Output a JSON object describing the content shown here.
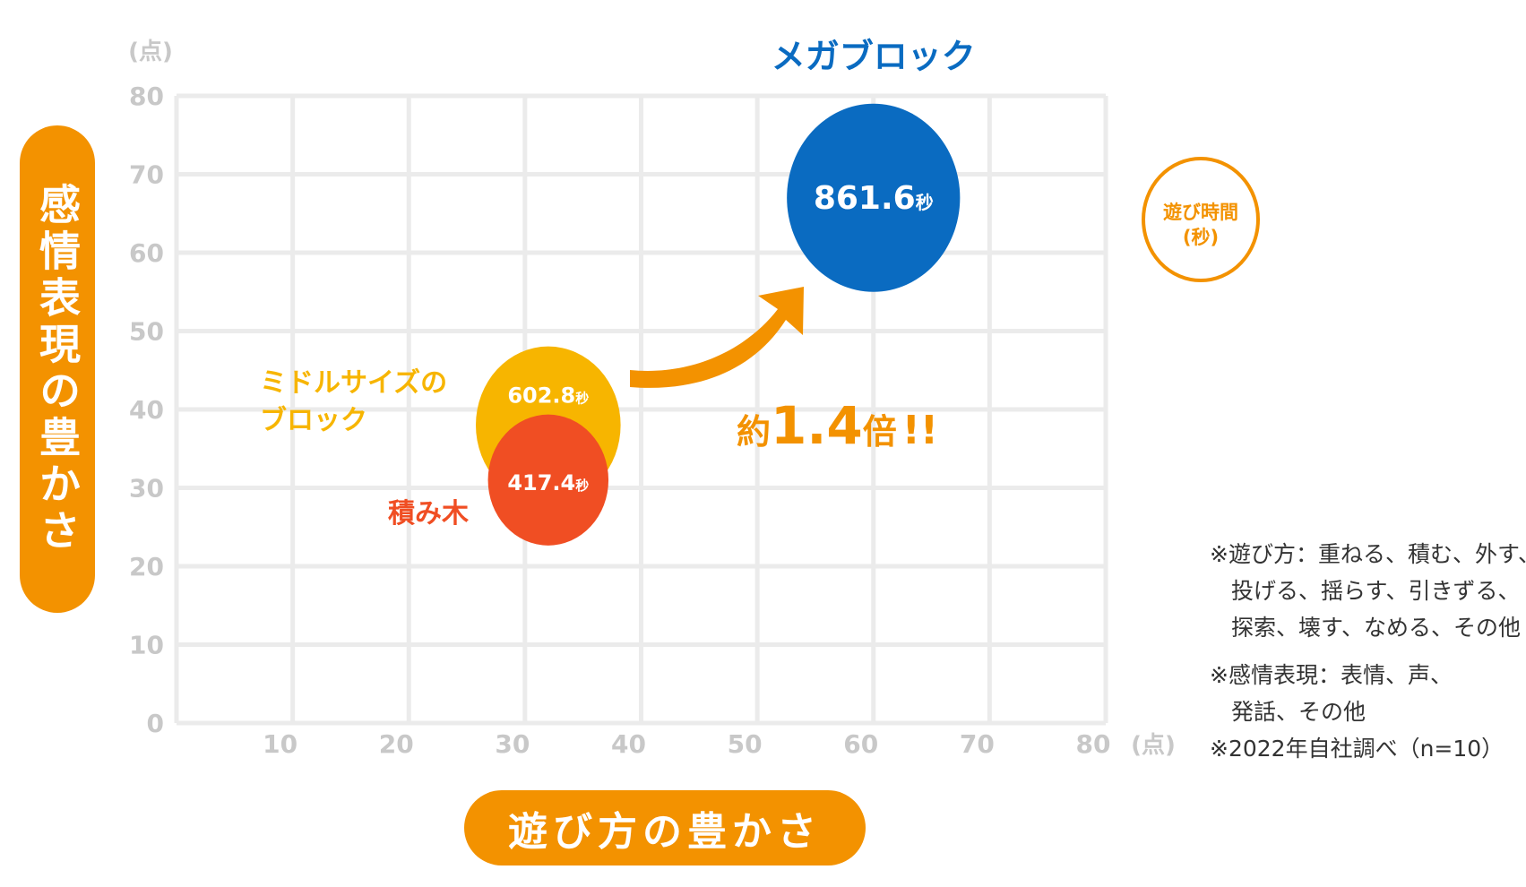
{
  "chart_data": {
    "type": "scatter",
    "xlim": [
      0,
      80
    ],
    "ylim": [
      0,
      80
    ],
    "x_ticks": [
      10,
      20,
      30,
      40,
      50,
      60,
      70,
      80
    ],
    "y_ticks": [
      0,
      10,
      20,
      30,
      40,
      50,
      60,
      70,
      80
    ],
    "x_unit": "(点)",
    "y_unit": "(点)",
    "grid": true,
    "xlabel": "遊び方の豊かさ",
    "ylabel": "感情表現の豊かさ",
    "size_legend": "遊び時間\n(秒)",
    "points": [
      {
        "name": "ミドルサイズの\nブロック",
        "x": 32,
        "y": 38,
        "size": 602.8,
        "value_label": "602.8",
        "unit": "秒",
        "color": "#f7b500"
      },
      {
        "name": "積み木",
        "x": 32,
        "y": 31,
        "size": 417.4,
        "value_label": "417.4",
        "unit": "秒",
        "color": "#f04e23"
      },
      {
        "name": "メガブロック",
        "x": 60,
        "y": 67,
        "size": 861.6,
        "value_label": "861.6",
        "unit": "秒",
        "color": "#0a6bc1"
      }
    ],
    "annotation": {
      "prefix": "約",
      "value": "1.4",
      "suffix": "倍",
      "mark": "!!"
    }
  },
  "colors": {
    "accent": "#f39200",
    "grid": "#ebebeb",
    "tick": "#c8c8c8",
    "notes": "#333333"
  },
  "notes": [
    "※遊び方：重ねる、積む、外す、",
    "投げる、揺らす、引きずる、",
    "探索、壊す、なめる、その他",
    "※感情表現：表情、声、",
    "発話、その他",
    "※2022年自社調べ（n=10）"
  ]
}
